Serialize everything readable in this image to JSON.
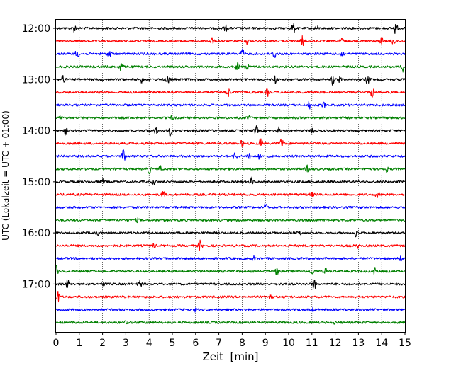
{
  "chart_data": {
    "type": "line",
    "title": "",
    "xlabel": "Zeit  [min]",
    "ylabel": "UTC (Lokalzeit = UTC + 01:00)",
    "xlim": [
      0,
      15
    ],
    "x_ticks": [
      "0",
      "1",
      "2",
      "3",
      "4",
      "5",
      "6",
      "7",
      "8",
      "9",
      "10",
      "11",
      "12",
      "13",
      "14",
      "15"
    ],
    "y_ticks": [
      "12:00",
      "13:00",
      "14:00",
      "15:00",
      "16:00",
      "17:00"
    ],
    "grid_x": true,
    "trace_minutes_per_line": 15,
    "trace_colors": [
      "#000000",
      "#ff0000",
      "#0000ff",
      "#008000"
    ],
    "traces": [
      {
        "start": "12:00",
        "events": [
          [
            0.8,
            0.6
          ],
          [
            7.3,
            0.45
          ],
          [
            10.2,
            0.8
          ],
          [
            11.2,
            0.4
          ],
          [
            14.6,
            0.9
          ]
        ]
      },
      {
        "start": "12:15",
        "events": [
          [
            6.7,
            0.55
          ],
          [
            8.2,
            0.6
          ],
          [
            10.6,
            0.7
          ],
          [
            12.3,
            0.5
          ],
          [
            14.0,
            0.55
          ],
          [
            14.5,
            0.6
          ]
        ]
      },
      {
        "start": "12:30",
        "events": [
          [
            0.9,
            0.7
          ],
          [
            2.3,
            0.55
          ],
          [
            8.0,
            0.8
          ],
          [
            9.4,
            0.75
          ],
          [
            12.3,
            0.5
          ]
        ]
      },
      {
        "start": "12:45",
        "events": [
          [
            2.8,
            0.75
          ],
          [
            7.8,
            0.65
          ],
          [
            8.2,
            0.5
          ],
          [
            14.9,
            0.85
          ]
        ]
      },
      {
        "start": "13:00",
        "events": [
          [
            0.3,
            0.8
          ],
          [
            3.7,
            0.55
          ],
          [
            4.8,
            0.65
          ],
          [
            9.4,
            0.7
          ],
          [
            11.9,
            0.9
          ],
          [
            12.2,
            0.5
          ],
          [
            13.4,
            0.85
          ]
        ]
      },
      {
        "start": "13:15",
        "events": [
          [
            7.4,
            0.7
          ],
          [
            9.1,
            0.55
          ],
          [
            13.6,
            0.8
          ]
        ]
      },
      {
        "start": "13:30",
        "events": [
          [
            10.9,
            0.55
          ],
          [
            11.5,
            0.4
          ]
        ]
      },
      {
        "start": "13:45",
        "events": [
          [
            0.2,
            0.3
          ],
          [
            5.0,
            0.3
          ],
          [
            8.3,
            0.3
          ]
        ]
      },
      {
        "start": "14:00",
        "events": [
          [
            0.4,
            0.7
          ],
          [
            4.3,
            0.55
          ],
          [
            4.9,
            0.7
          ],
          [
            8.6,
            0.65
          ],
          [
            9.6,
            0.5
          ],
          [
            11.0,
            0.55
          ]
        ]
      },
      {
        "start": "14:15",
        "events": [
          [
            8.0,
            0.5
          ],
          [
            8.8,
            0.7
          ],
          [
            9.7,
            0.8
          ]
        ]
      },
      {
        "start": "14:30",
        "events": [
          [
            2.9,
            0.9
          ],
          [
            7.7,
            0.55
          ],
          [
            8.3,
            0.7
          ],
          [
            8.7,
            0.4
          ]
        ]
      },
      {
        "start": "14:45",
        "events": [
          [
            4.0,
            0.65
          ],
          [
            4.5,
            0.45
          ],
          [
            10.8,
            0.5
          ],
          [
            14.2,
            0.45
          ]
        ]
      },
      {
        "start": "15:00",
        "events": [
          [
            2.0,
            0.4
          ],
          [
            8.4,
            0.7
          ],
          [
            4.2,
            0.35
          ]
        ]
      },
      {
        "start": "15:15",
        "events": [
          [
            4.6,
            0.45
          ],
          [
            11.0,
            0.3
          ],
          [
            13.8,
            0.35
          ]
        ]
      },
      {
        "start": "15:30",
        "events": [
          [
            9.0,
            0.65
          ],
          [
            13.2,
            0.3
          ]
        ]
      },
      {
        "start": "15:45",
        "events": [
          [
            3.5,
            0.25
          ],
          [
            11.0,
            0.25
          ]
        ]
      },
      {
        "start": "16:00",
        "events": [
          [
            1.8,
            0.3
          ],
          [
            10.5,
            0.35
          ],
          [
            12.9,
            0.6
          ]
        ]
      },
      {
        "start": "16:15",
        "events": [
          [
            4.2,
            0.35
          ],
          [
            6.2,
            0.75
          ],
          [
            13.0,
            0.3
          ]
        ]
      },
      {
        "start": "16:30",
        "events": [
          [
            8.5,
            0.3
          ],
          [
            14.8,
            0.35
          ]
        ]
      },
      {
        "start": "16:45",
        "events": [
          [
            0.0,
            0.85
          ],
          [
            9.5,
            0.55
          ],
          [
            11.0,
            0.5
          ],
          [
            11.6,
            0.45
          ],
          [
            13.7,
            0.55
          ]
        ]
      },
      {
        "start": "17:00",
        "events": [
          [
            0.5,
            0.7
          ],
          [
            2.0,
            0.45
          ],
          [
            3.6,
            0.55
          ],
          [
            11.1,
            0.8
          ]
        ]
      },
      {
        "start": "17:15",
        "events": [
          [
            0.1,
            0.85
          ],
          [
            9.2,
            0.75
          ]
        ]
      },
      {
        "start": "17:30",
        "events": [
          [
            6.0,
            0.25
          ],
          [
            11.0,
            0.25
          ]
        ]
      },
      {
        "start": "17:45",
        "events": [
          [
            3.0,
            0.2
          ],
          [
            12.0,
            0.2
          ]
        ]
      }
    ]
  }
}
